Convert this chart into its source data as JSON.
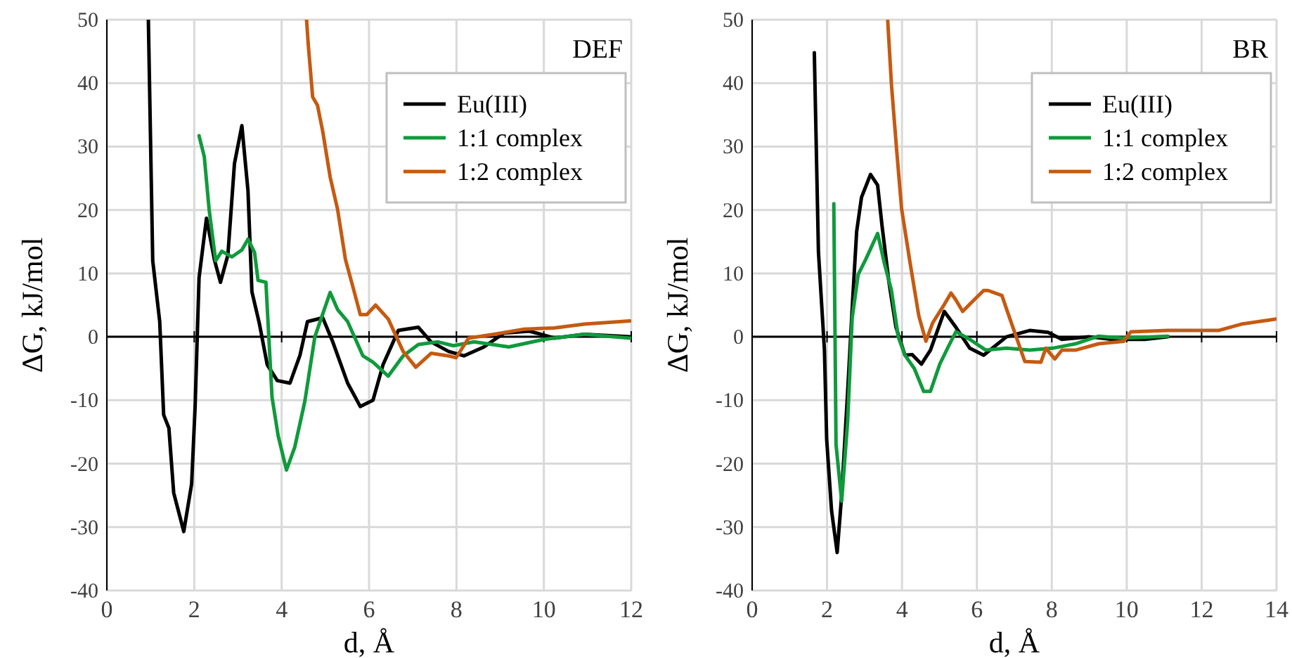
{
  "chart_data": [
    {
      "type": "line",
      "title": "DEF",
      "xlabel": "d, Å",
      "ylabel": "ΔG, kJ/mol",
      "xlim": [
        0,
        12
      ],
      "ylim": [
        -40,
        50
      ],
      "xticks": [
        0,
        2,
        4,
        6,
        8,
        10,
        12
      ],
      "yticks": [
        -40,
        -30,
        -20,
        -10,
        0,
        10,
        20,
        30,
        40,
        50
      ],
      "grid": true,
      "legend": "top right",
      "line_style": "solid",
      "series": [
        {
          "name": "Eu(III)",
          "color": "#000000",
          "x": [
            0.95,
            1.05,
            1.21,
            1.3,
            1.42,
            1.53,
            1.76,
            1.94,
            2.02,
            2.11,
            2.28,
            2.46,
            2.6,
            2.77,
            2.92,
            3.09,
            3.23,
            3.32,
            3.49,
            3.67,
            3.9,
            4.19,
            4.42,
            4.59,
            4.94,
            5.17,
            5.51,
            5.8,
            6.09,
            6.32,
            6.67,
            7.13,
            7.42,
            7.82,
            8.17,
            8.63,
            9.09,
            9.67,
            10.24,
            10.93,
            11.97
          ],
          "values": [
            50,
            12,
            2.4,
            -12.3,
            -14.4,
            -24.6,
            -30.7,
            -23.2,
            -11,
            9.3,
            18.7,
            12.2,
            8.6,
            12.9,
            27.3,
            33.3,
            23,
            7.1,
            2.1,
            -4.4,
            -6.9,
            -7.3,
            -2.9,
            2.4,
            3,
            -0.8,
            -7.3,
            -11,
            -10,
            -4.4,
            1,
            1.5,
            -0.8,
            -2.3,
            -3,
            -1.6,
            0.6,
            0.9,
            -0.2,
            0.4,
            0
          ]
        },
        {
          "name": "1:1 complex",
          "color": "#109a3c",
          "x": [
            2.11,
            2.23,
            2.34,
            2.49,
            2.63,
            2.86,
            3.09,
            3.23,
            3.38,
            3.46,
            3.64,
            3.78,
            3.92,
            4.11,
            4.3,
            4.53,
            4.76,
            5.11,
            5.28,
            5.51,
            5.86,
            6.09,
            6.44,
            6.78,
            7.13,
            7.58,
            7.93,
            8.4,
            9.2,
            10.01,
            10.93,
            11.97
          ],
          "values": [
            31.7,
            28.4,
            20.1,
            12,
            13.5,
            12.6,
            13.7,
            15.4,
            13.3,
            8.9,
            8.6,
            -9.5,
            -15.6,
            -21,
            -17.4,
            -10.2,
            0,
            7,
            4.3,
            2.4,
            -3,
            -4,
            -6.2,
            -3,
            -1.2,
            -0.8,
            -1.4,
            -0.8,
            -1.6,
            -0.4,
            0.4,
            -0.2
          ]
        },
        {
          "name": "1:2 complex",
          "color": "#c55a11",
          "x": [
            4.57,
            4.61,
            4.71,
            4.82,
            4.94,
            5.11,
            5.28,
            5.46,
            5.63,
            5.8,
            5.95,
            6.15,
            6.44,
            6.78,
            7.07,
            7.42,
            7.82,
            7.99,
            8.28,
            8.86,
            9.55,
            10.24,
            10.93,
            11.97
          ],
          "values": [
            50,
            46,
            37.8,
            36.5,
            32.4,
            25.2,
            20.1,
            12.2,
            7.9,
            3.5,
            3.5,
            5,
            2.8,
            -2.3,
            -4.8,
            -2.6,
            -3,
            -3.3,
            -0.2,
            0.4,
            1.2,
            1.4,
            2,
            2.5
          ]
        }
      ]
    },
    {
      "type": "line",
      "title": "BR",
      "xlabel": "d, Å",
      "ylabel": "ΔG, kJ/mol",
      "xlim": [
        0,
        14
      ],
      "ylim": [
        -40,
        50
      ],
      "xticks": [
        0,
        2,
        4,
        6,
        8,
        10,
        12,
        14
      ],
      "yticks": [
        -40,
        -30,
        -20,
        -10,
        0,
        10,
        20,
        30,
        40,
        50
      ],
      "grid": true,
      "legend": "top right",
      "line_style": "solid",
      "series": [
        {
          "name": "Eu(III)",
          "color": "#000000",
          "x": [
            1.66,
            1.77,
            1.93,
            1.99,
            2.12,
            2.27,
            2.39,
            2.55,
            2.67,
            2.79,
            2.92,
            3.16,
            3.35,
            3.47,
            3.65,
            3.84,
            4.08,
            4.27,
            4.52,
            4.76,
            5.13,
            5.44,
            5.81,
            6.18,
            6.79,
            7.41,
            7.9,
            8.27,
            9.0,
            9.62,
            10.48,
            11.1
          ],
          "values": [
            44.8,
            13.4,
            -2.1,
            -16.2,
            -27.4,
            -34,
            -25,
            -8.6,
            4.4,
            16.6,
            22,
            25.6,
            23.9,
            17.4,
            8.7,
            1.5,
            -2.9,
            -2.8,
            -4.3,
            -2.1,
            4,
            1.5,
            -1.8,
            -2.9,
            0,
            1,
            0.7,
            -0.4,
            0,
            -0.4,
            -0.4,
            0
          ]
        },
        {
          "name": "1:1 complex",
          "color": "#109a3c",
          "x": [
            2.18,
            2.24,
            2.39,
            2.55,
            2.67,
            2.83,
            3.04,
            3.35,
            3.53,
            3.72,
            3.9,
            4.08,
            4.33,
            4.58,
            4.76,
            5.01,
            5.25,
            5.44,
            5.81,
            6.24,
            6.79,
            7.41,
            8.02,
            8.63,
            9.25,
            9.87,
            11.1
          ],
          "values": [
            21,
            -17,
            -25.9,
            -13.3,
            2.9,
            9.8,
            12.3,
            16.3,
            11.6,
            7.3,
            0,
            -2.9,
            -5,
            -8.6,
            -8.6,
            -4.3,
            -1.4,
            0.8,
            -0.4,
            -2.1,
            -1.8,
            -2.1,
            -1.8,
            -1.1,
            0.1,
            -0.2,
            0.1
          ]
        },
        {
          "name": "1:2 complex",
          "color": "#c55a11",
          "x": [
            3.62,
            3.72,
            3.86,
            3.99,
            4.21,
            4.33,
            4.45,
            4.64,
            4.82,
            5.13,
            5.31,
            5.44,
            5.62,
            5.87,
            6.18,
            6.3,
            6.67,
            6.79,
            7.28,
            7.71,
            7.84,
            8.08,
            8.27,
            8.63,
            9.25,
            9.92,
            10.11,
            11.1,
            12.45,
            13.06,
            14
          ],
          "values": [
            49.8,
            39.7,
            29.3,
            20.2,
            11.9,
            7.6,
            3.3,
            -0.7,
            2.2,
            5.1,
            6.9,
            5.8,
            4,
            5.5,
            7.3,
            7.3,
            6.5,
            4.4,
            -3.9,
            -4,
            -1.8,
            -3.5,
            -2.1,
            -2.1,
            -1.1,
            -0.7,
            0.8,
            1,
            1,
            2,
            2.8
          ]
        }
      ]
    }
  ]
}
